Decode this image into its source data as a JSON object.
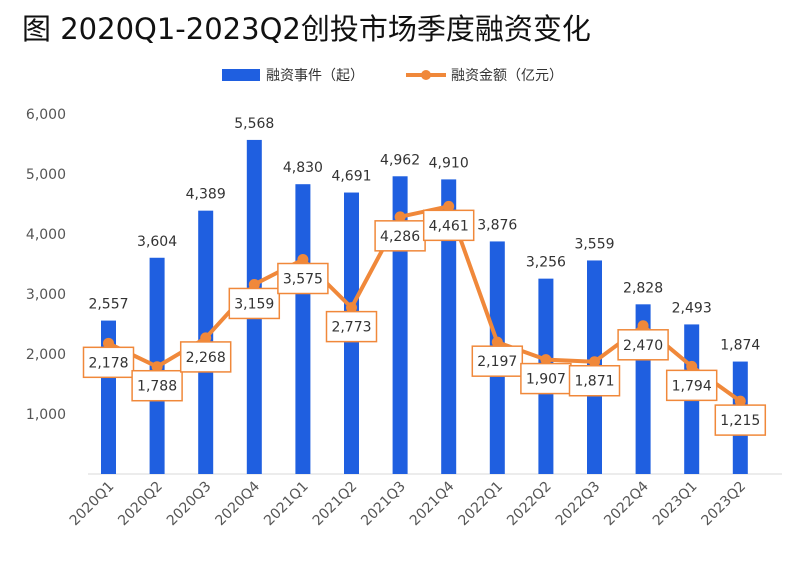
{
  "chart_data": {
    "type": "bar",
    "title": "图 2020Q1-2023Q2创投市场季度融资变化",
    "categories": [
      "2020Q1",
      "2020Q2",
      "2020Q3",
      "2020Q4",
      "2021Q1",
      "2021Q2",
      "2021Q3",
      "2021Q4",
      "2022Q1",
      "2022Q2",
      "2022Q3",
      "2022Q4",
      "2023Q1",
      "2023Q2"
    ],
    "series": [
      {
        "name": "融资事件（起）",
        "type": "bar",
        "color": "#1f5fe0",
        "values": [
          2557,
          3604,
          4389,
          5568,
          4830,
          4691,
          4962,
          4910,
          3876,
          3256,
          3559,
          2828,
          2493,
          1874
        ],
        "labels": [
          "2,557",
          "3,604",
          "4,389",
          "5,568",
          "4,830",
          "4,691",
          "4,962",
          "4,910",
          "3,876",
          "3,256",
          "3,559",
          "2,828",
          "2,493",
          "1,874"
        ]
      },
      {
        "name": "融资金额（亿元）",
        "type": "line",
        "color": "#f0883a",
        "values": [
          2178,
          1788,
          2268,
          3159,
          3575,
          2773,
          4286,
          4461,
          2197,
          1907,
          1871,
          2470,
          1794,
          1215
        ],
        "labels": [
          "2,178",
          "1,788",
          "2,268",
          "3,159",
          "3,575",
          "2,773",
          "4,286",
          "4,461",
          "2,197",
          "1,907",
          "1,871",
          "2,470",
          "1,794",
          "1,215"
        ]
      }
    ],
    "ylim": [
      0,
      6000
    ],
    "yticks": [
      1000,
      2000,
      3000,
      4000,
      5000,
      6000
    ],
    "ytick_labels": [
      "1,000",
      "2,000",
      "3,000",
      "4,000",
      "5,000",
      "6,000"
    ],
    "grid": false,
    "legend": "top-center"
  }
}
